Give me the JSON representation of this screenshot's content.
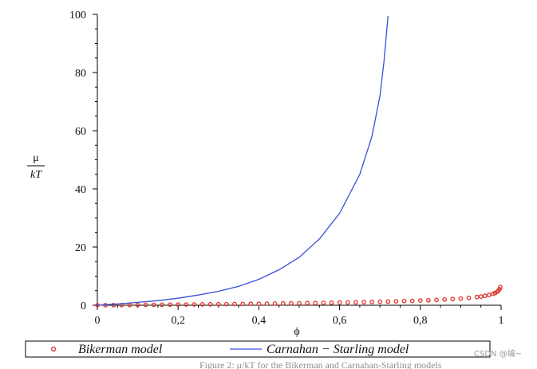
{
  "chart_data": {
    "type": "line",
    "xlabel": "ϕ",
    "ylabel_num": "μ",
    "ylabel_den": "kT",
    "xlim": [
      0,
      1
    ],
    "ylim": [
      0,
      100
    ],
    "x_ticks": [
      {
        "v": 0,
        "label": "0"
      },
      {
        "v": 0.2,
        "label": "0,2"
      },
      {
        "v": 0.4,
        "label": "0,4"
      },
      {
        "v": 0.6,
        "label": "0,6"
      },
      {
        "v": 0.8,
        "label": "0,8"
      },
      {
        "v": 1.0,
        "label": "1"
      }
    ],
    "y_ticks": [
      {
        "v": 0,
        "label": "0"
      },
      {
        "v": 20,
        "label": "20"
      },
      {
        "v": 40,
        "label": "40"
      },
      {
        "v": 60,
        "label": "60"
      },
      {
        "v": 80,
        "label": "80"
      },
      {
        "v": 100,
        "label": "100"
      }
    ],
    "legend_position": "bottom",
    "series": [
      {
        "name": "Bikerman model",
        "style": "markers",
        "color": "#e0403a",
        "x": [
          0,
          0.02,
          0.04,
          0.06,
          0.08,
          0.1,
          0.12,
          0.14,
          0.16,
          0.18,
          0.2,
          0.22,
          0.24,
          0.26,
          0.28,
          0.3,
          0.32,
          0.34,
          0.36,
          0.38,
          0.4,
          0.42,
          0.44,
          0.46,
          0.48,
          0.5,
          0.52,
          0.54,
          0.56,
          0.58,
          0.6,
          0.62,
          0.64,
          0.66,
          0.68,
          0.7,
          0.72,
          0.74,
          0.76,
          0.78,
          0.8,
          0.82,
          0.84,
          0.86,
          0.88,
          0.9,
          0.92,
          0.94,
          0.95,
          0.96,
          0.97,
          0.98,
          0.985,
          0.99,
          0.993,
          0.996,
          0.998
        ],
        "y": [
          0,
          0.02,
          0.04,
          0.06,
          0.08,
          0.11,
          0.13,
          0.15,
          0.17,
          0.2,
          0.22,
          0.25,
          0.27,
          0.3,
          0.33,
          0.36,
          0.39,
          0.42,
          0.45,
          0.48,
          0.51,
          0.55,
          0.58,
          0.62,
          0.65,
          0.69,
          0.73,
          0.78,
          0.82,
          0.87,
          0.92,
          0.97,
          1.02,
          1.08,
          1.14,
          1.2,
          1.27,
          1.35,
          1.43,
          1.51,
          1.61,
          1.71,
          1.83,
          1.97,
          2.12,
          2.3,
          2.53,
          2.81,
          3.0,
          3.22,
          3.51,
          3.91,
          4.2,
          4.61,
          4.96,
          5.52,
          6.22
        ]
      },
      {
        "name": "Carnahan − Starling model",
        "style": "line",
        "color": "#3a4fd8",
        "x": [
          0,
          0.05,
          0.1,
          0.15,
          0.2,
          0.25,
          0.3,
          0.35,
          0.4,
          0.45,
          0.5,
          0.55,
          0.6,
          0.65,
          0.68,
          0.7,
          0.71,
          0.72
        ],
        "y": [
          0,
          0.45,
          1.0,
          1.6,
          2.4,
          3.5,
          4.8,
          6.5,
          8.9,
          12.2,
          16.5,
          22.8,
          31.6,
          45.0,
          58.0,
          72.0,
          84.0,
          99.5
        ]
      }
    ]
  },
  "watermark": "CSDN @编~",
  "caption": "Figure 2: μ/kT for the Bikerman and Carnahan-Starling models"
}
